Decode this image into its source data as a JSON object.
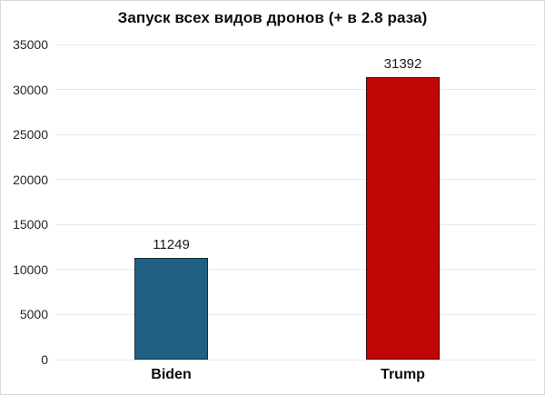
{
  "chart_data": {
    "type": "bar",
    "title": "Запуск всех видов дронов (+ в 2.8 раза)",
    "categories": [
      "Biden",
      "Trump"
    ],
    "values": [
      11249,
      31392
    ],
    "value_labels": [
      "11249",
      "31392"
    ],
    "bar_colors": [
      "#1f6083",
      "#c00505"
    ],
    "bar_border_colors": [
      "#17333f",
      "#3a0b0b"
    ],
    "xlabel": "",
    "ylabel": "",
    "ylim": [
      0,
      35000
    ],
    "yticks": [
      0,
      5000,
      10000,
      15000,
      20000,
      25000,
      30000,
      35000
    ],
    "ytick_labels": [
      "0",
      "5000",
      "10000",
      "15000",
      "20000",
      "25000",
      "30000",
      "35000"
    ],
    "grid": "horizontal",
    "legend": "none"
  },
  "colors": {
    "background": "#ffffff",
    "canvas_border": "#d9d9d9",
    "gridline": "#e9e9e9",
    "title_text": "#0d0d0d",
    "tick_text": "#262626",
    "value_text": "#1a1a1a",
    "category_text": "#0d0d0d"
  }
}
